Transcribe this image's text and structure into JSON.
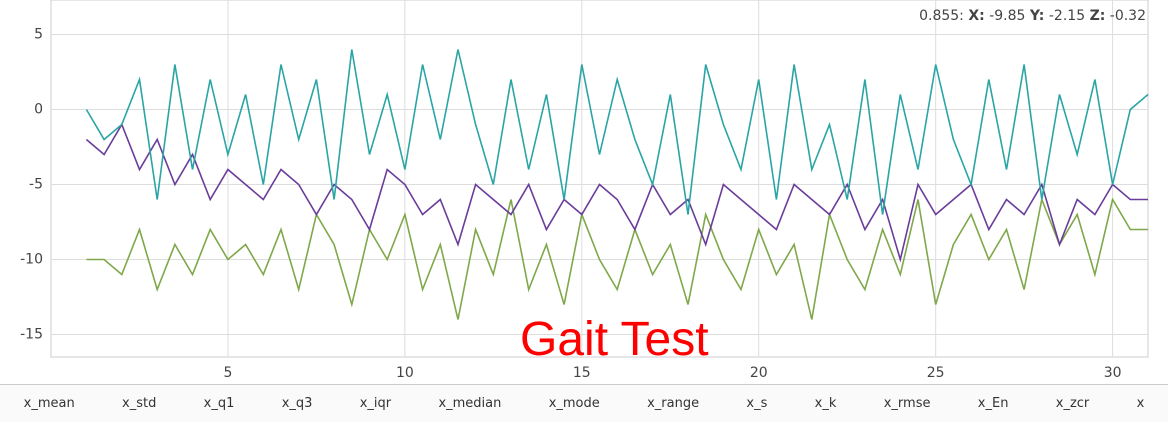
{
  "chart_data": {
    "type": "line",
    "x": [
      1,
      1.5,
      2,
      2.5,
      3,
      3.5,
      4,
      4.5,
      5,
      5.5,
      6,
      6.5,
      7,
      7.5,
      8,
      8.5,
      9,
      9.5,
      10,
      10.5,
      11,
      11.5,
      12,
      12.5,
      13,
      13.5,
      14,
      14.5,
      15,
      15.5,
      16,
      16.5,
      17,
      17.5,
      18,
      18.5,
      19,
      19.5,
      20,
      20.5,
      21,
      21.5,
      22,
      22.5,
      23,
      23.5,
      24,
      24.5,
      25,
      25.5,
      26,
      26.5,
      27,
      27.5,
      28,
      28.5,
      29,
      29.5,
      30,
      30.5,
      31
    ],
    "series": [
      {
        "color": "#7fa84a",
        "values": [
          -10,
          -10,
          -11,
          -8,
          -12,
          -9,
          -11,
          -8,
          -10,
          -9,
          -11,
          -8,
          -12,
          -7,
          -9,
          -13,
          -8,
          -10,
          -7,
          -12,
          -9,
          -14,
          -8,
          -11,
          -6,
          -12,
          -9,
          -13,
          -7,
          -10,
          -12,
          -8,
          -11,
          -9,
          -13,
          -7,
          -10,
          -12,
          -8,
          -11,
          -9,
          -14,
          -7,
          -10,
          -12,
          -8,
          -11,
          -6,
          -13,
          -9,
          -7,
          -10,
          -8,
          -12,
          -6,
          -9,
          -7,
          -11,
          -6,
          -8,
          -8
        ]
      },
      {
        "color": "#6a3d9a",
        "values": [
          -2,
          -3,
          -1,
          -4,
          -2,
          -5,
          -3,
          -6,
          -4,
          -5,
          -6,
          -4,
          -5,
          -7,
          -5,
          -6,
          -8,
          -4,
          -5,
          -7,
          -6,
          -9,
          -5,
          -6,
          -7,
          -5,
          -8,
          -6,
          -7,
          -5,
          -6,
          -8,
          -5,
          -7,
          -6,
          -9,
          -5,
          -6,
          -7,
          -8,
          -5,
          -6,
          -7,
          -5,
          -8,
          -6,
          -10,
          -5,
          -7,
          -6,
          -5,
          -8,
          -6,
          -7,
          -5,
          -9,
          -6,
          -7,
          -5,
          -6,
          -6
        ]
      },
      {
        "color": "#2aa5a5",
        "values": [
          0,
          -2,
          -1,
          2,
          -6,
          3,
          -4,
          2,
          -3,
          1,
          -5,
          3,
          -2,
          2,
          -6,
          4,
          -3,
          1,
          -4,
          3,
          -2,
          4,
          -1,
          -5,
          2,
          -4,
          1,
          -6,
          3,
          -3,
          2,
          -2,
          -5,
          1,
          -7,
          3,
          -1,
          -4,
          2,
          -6,
          3,
          -4,
          -1,
          -6,
          2,
          -7,
          1,
          -4,
          3,
          -2,
          -5,
          2,
          -4,
          3,
          -6,
          1,
          -3,
          2,
          -5,
          0,
          1
        ]
      }
    ],
    "xlim": [
      0,
      31
    ],
    "ylim": [
      -16.5,
      7.3
    ],
    "xticks": [
      5,
      10,
      15,
      20,
      25,
      30
    ],
    "yticks": [
      5,
      0,
      -5,
      -10,
      -15
    ],
    "grid": true,
    "annotation": "Gait Test"
  },
  "readout": {
    "time": "0.855:",
    "items": [
      {
        "label": "X:",
        "value": "-9.85"
      },
      {
        "label": "Y:",
        "value": "-2.15"
      },
      {
        "label": "Z:",
        "value": "-0.32"
      }
    ]
  },
  "features": [
    "x_mean",
    "x_std",
    "x_q1",
    "x_q3",
    "x_iqr",
    "x_median",
    "x_mode",
    "x_range",
    "x_s",
    "x_k",
    "x_rmse",
    "x_En",
    "x_zcr",
    "x"
  ]
}
